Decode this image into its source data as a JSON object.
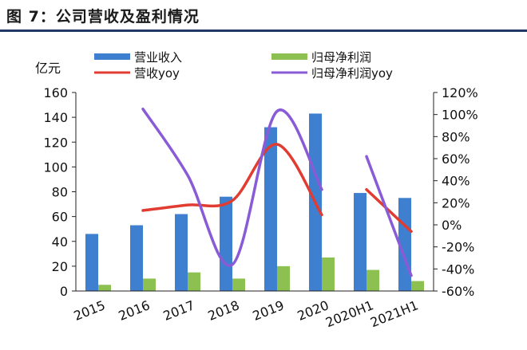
{
  "figure": {
    "title": "图 7：公司营收及盈利情况"
  },
  "chart_data": {
    "type": "bar",
    "combo": "bar+line",
    "categories": [
      "2015",
      "2016",
      "2017",
      "2018",
      "2019",
      "2020",
      "2020H1",
      "2021H1"
    ],
    "y_unit_label": "亿元",
    "ylim": [
      0,
      160
    ],
    "y_ticks": [
      "0",
      "20",
      "40",
      "60",
      "80",
      "100",
      "120",
      "140",
      "160"
    ],
    "y2lim": [
      -60,
      120
    ],
    "y2_ticks": [
      "-60%",
      "-40%",
      "-20%",
      "0%",
      "20%",
      "40%",
      "60%",
      "80%",
      "100%",
      "120%"
    ],
    "grid": false,
    "legend_position": "top",
    "bar_series": [
      {
        "name": "营业收入",
        "color": "#3f7fcf",
        "values": [
          46,
          53,
          62,
          76,
          132,
          143,
          79,
          75
        ]
      },
      {
        "name": "归母净利润",
        "color": "#8cc152",
        "values": [
          5,
          10,
          15,
          10,
          20,
          27,
          17,
          8
        ]
      }
    ],
    "line_series": [
      {
        "name": "营收yoy",
        "color": "#e03c31",
        "axis": "right",
        "values": [
          null,
          13,
          18,
          22,
          73,
          9,
          32,
          -6
        ]
      },
      {
        "name": "归母净利润yoy",
        "color": "#8a5bd6",
        "axis": "right",
        "values": [
          null,
          105,
          45,
          -36,
          103,
          32,
          62,
          -46
        ]
      }
    ]
  }
}
